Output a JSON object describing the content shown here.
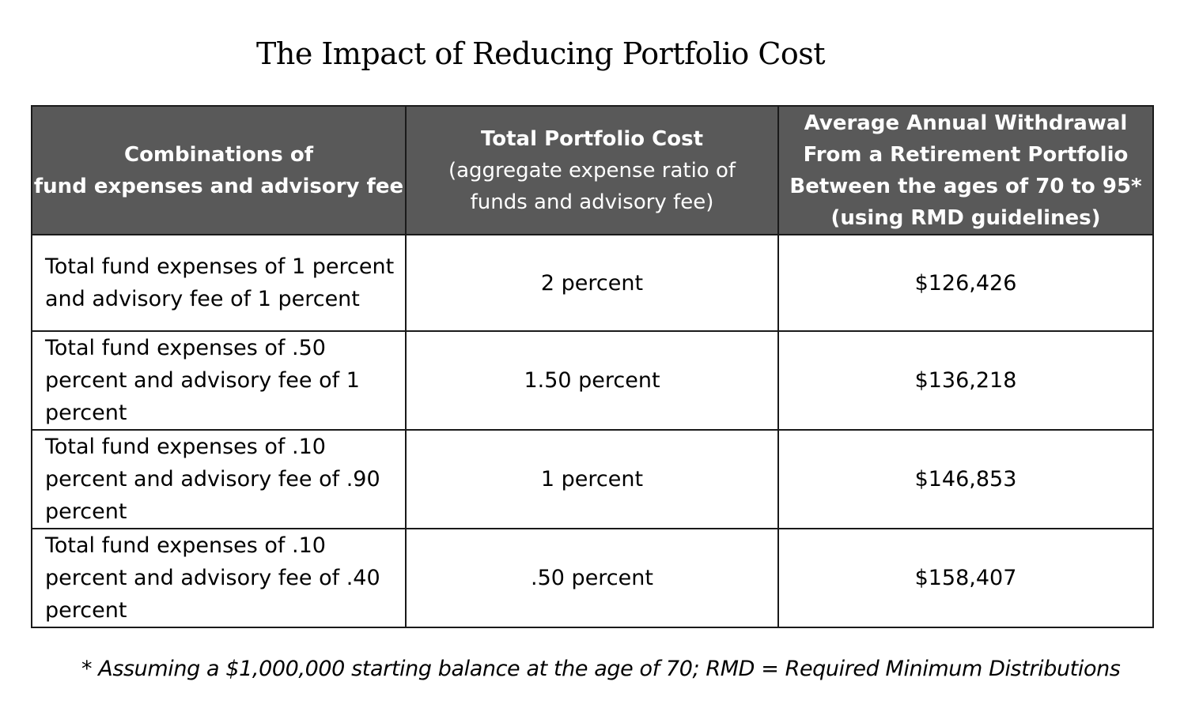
{
  "title": "The Impact of Reducing Portfolio Cost",
  "table": {
    "headers": [
      {
        "line1": "Combinations of",
        "line2": "fund expenses and advisory fee"
      },
      {
        "line1": "Total Portfolio Cost",
        "line2": "(aggregate expense ratio of",
        "line3": "funds and advisory fee)"
      },
      {
        "line1": "Average Annual Withdrawal",
        "line2": "From a Retirement Portfolio",
        "line3": "Between the ages of 70 to 95*",
        "line4": "(using RMD guidelines)"
      }
    ],
    "rows": [
      {
        "combination": "Total fund expenses of 1 percent and advisory fee of 1 percent",
        "total_cost": "2 percent",
        "withdrawal": "$126,426"
      },
      {
        "combination": "Total fund expenses of .50 percent and advisory fee of 1 percent",
        "total_cost": "1.50 percent",
        "withdrawal": "$136,218"
      },
      {
        "combination": "Total fund expenses of .10 percent and advisory fee of .90 percent",
        "total_cost": "1 percent",
        "withdrawal": "$146,853"
      },
      {
        "combination": "Total fund expenses of .10 percent and advisory fee of .40 percent",
        "total_cost": ".50 percent",
        "withdrawal": "$158,407"
      }
    ]
  },
  "footnote": "* Assuming a $1,000,000 starting balance at the age of 70; RMD = Required Minimum Distributions",
  "colors": {
    "header_background": "#595959",
    "header_text": "#ffffff",
    "border": "#1a1a1a"
  }
}
